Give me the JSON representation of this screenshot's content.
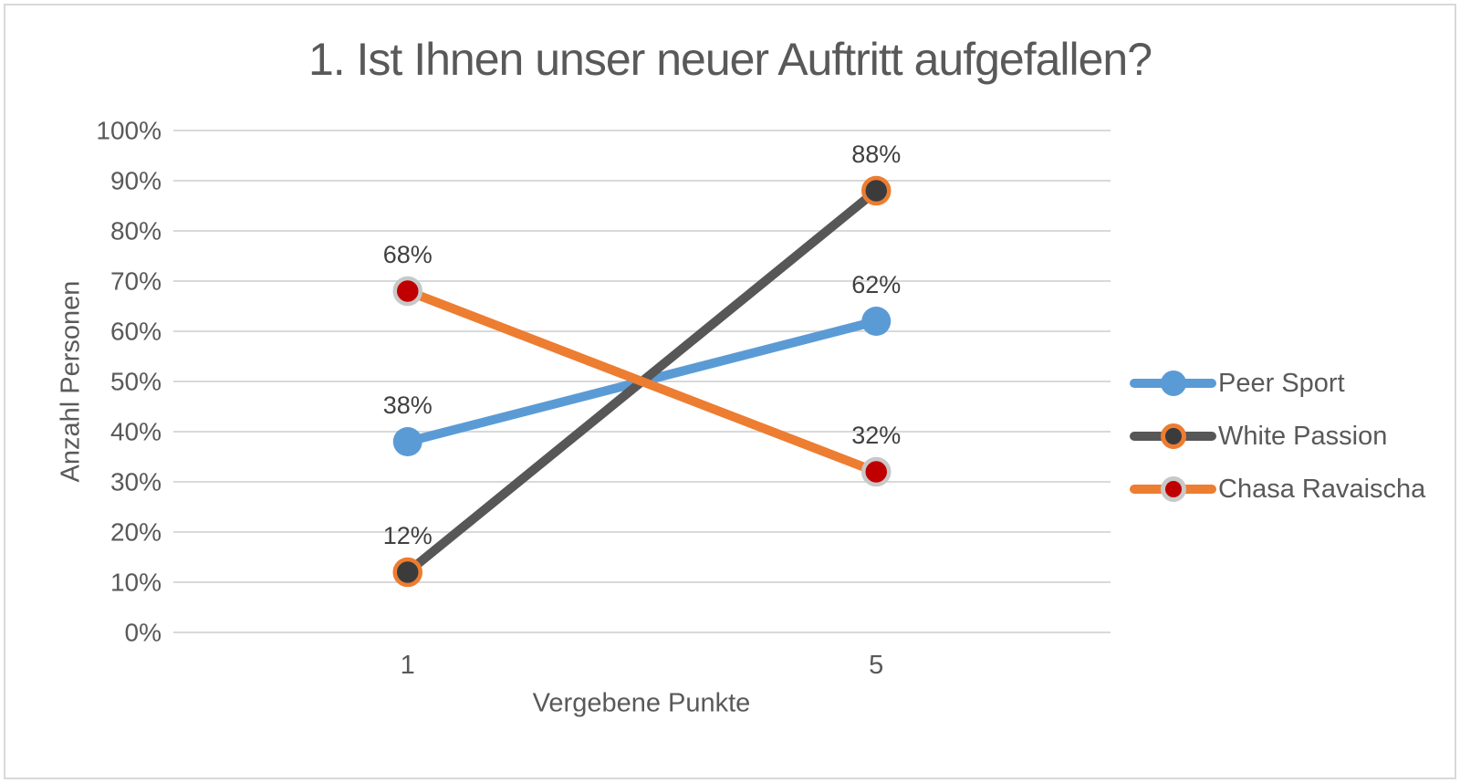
{
  "chart_data": {
    "type": "line",
    "title": "1. Ist Ihnen unser neuer Auftritt aufgefallen?",
    "xlabel": "Vergebene Punkte",
    "ylabel": "Anzahl Personen",
    "categories": [
      "1",
      "5"
    ],
    "series": [
      {
        "name": "Peer Sport",
        "values": [
          38,
          62
        ],
        "data_labels": [
          "38%",
          "62%"
        ],
        "color": "#5B9BD5",
        "marker_fill": "#5B9BD5",
        "marker_ring": "#5B9BD5"
      },
      {
        "name": "White Passion",
        "values": [
          12,
          88
        ],
        "data_labels": [
          "12%",
          "88%"
        ],
        "color": "#575757",
        "marker_fill": "#3B3B3B",
        "marker_ring": "#ED7D31"
      },
      {
        "name": "Chasa Ravaischa",
        "values": [
          68,
          32
        ],
        "data_labels": [
          "68%",
          "32%"
        ],
        "color": "#ED7D31",
        "marker_fill": "#C00000",
        "marker_ring": "#C8C8C8"
      }
    ],
    "ylim": [
      0,
      100
    ],
    "ytick_step": 10,
    "yticks": [
      "0%",
      "10%",
      "20%",
      "30%",
      "40%",
      "50%",
      "60%",
      "70%",
      "80%",
      "90%",
      "100%"
    ],
    "grid": true,
    "legend_position": "right"
  },
  "style": {
    "text_color": "#595959",
    "data_label_color": "#404040",
    "gridline_color": "#d9d9d9",
    "border_color": "#d9d9d9",
    "background": "#ffffff"
  }
}
